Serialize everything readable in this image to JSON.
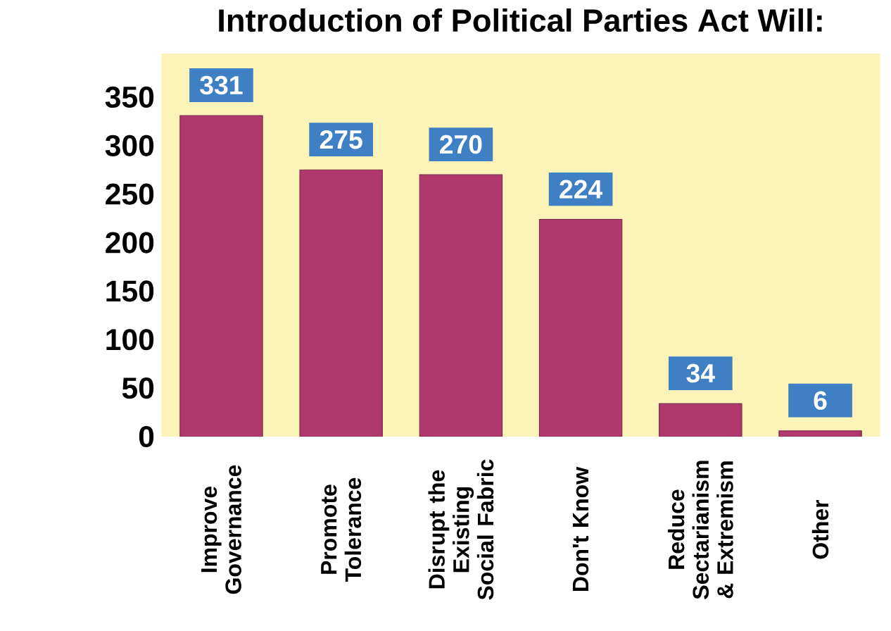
{
  "chart_data": {
    "type": "bar",
    "title": "Introduction of Political Parties Act Will:",
    "categories": [
      "Improve Governance",
      "Promote Tolerance",
      "Disrupt the Existing Social Fabric",
      "Don't Know",
      "Reduce Sectarianism & Extremism",
      "Other"
    ],
    "values": [
      331,
      275,
      270,
      224,
      34,
      6
    ],
    "color": "#b0386c",
    "ylim": [
      0,
      395
    ],
    "yticks": [
      0,
      50,
      100,
      150,
      200,
      250,
      300,
      350
    ],
    "data_labels": true
  }
}
